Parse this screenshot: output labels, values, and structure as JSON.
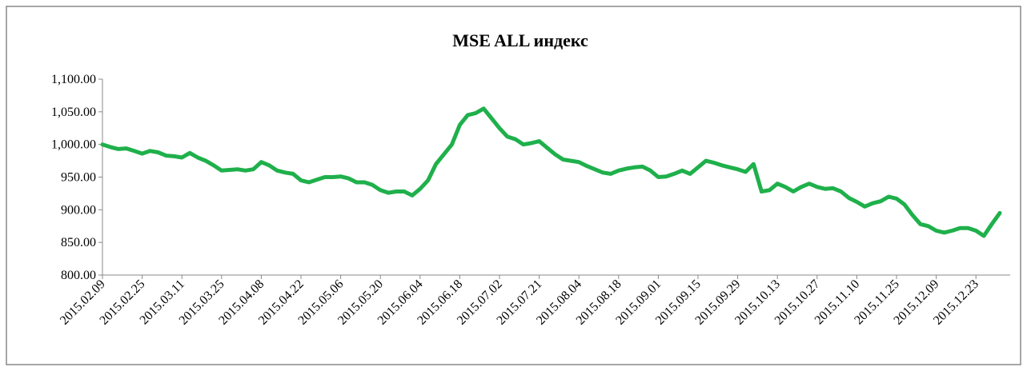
{
  "chart_data": {
    "type": "line",
    "title": "MSE ALL индекс",
    "categories": [
      "2015.02.09",
      null,
      null,
      null,
      null,
      "2015.02.25",
      null,
      null,
      null,
      null,
      "2015.03.11",
      null,
      null,
      null,
      null,
      "2015.03.25",
      null,
      null,
      null,
      null,
      "2015.04.08",
      null,
      null,
      null,
      null,
      "2015.04.22",
      null,
      null,
      null,
      null,
      "2015.05.06",
      null,
      null,
      null,
      null,
      "2015.05.20",
      null,
      null,
      null,
      null,
      "2015.06.04",
      null,
      null,
      null,
      null,
      "2015.06.18",
      null,
      null,
      null,
      null,
      "2015.07.02",
      null,
      null,
      null,
      null,
      "2015.07.21",
      null,
      null,
      null,
      null,
      "2015.08.04",
      null,
      null,
      null,
      null,
      "2015.08.18",
      null,
      null,
      null,
      null,
      "2015.09.01",
      null,
      null,
      null,
      null,
      "2015.09.15",
      null,
      null,
      null,
      null,
      "2015.09.29",
      null,
      null,
      null,
      null,
      "2015.10.13",
      null,
      null,
      null,
      null,
      "2015.10.27",
      null,
      null,
      null,
      null,
      "2015.11.10",
      null,
      null,
      null,
      null,
      "2015.11.25",
      null,
      null,
      null,
      null,
      "2015.12.09",
      null,
      null,
      null,
      null,
      "2015.12.23",
      null,
      null,
      null
    ],
    "series": [
      {
        "color": "#1fb04b",
        "values": [
          1000,
          996,
          993,
          994,
          990,
          986,
          990,
          988,
          983,
          982,
          980,
          987,
          980,
          975,
          968,
          960,
          961,
          962,
          960,
          962,
          973,
          968,
          960,
          957,
          955,
          945,
          942,
          946,
          950,
          950,
          951,
          948,
          942,
          942,
          938,
          930,
          926,
          928,
          928,
          922,
          932,
          945,
          970,
          985,
          1000,
          1030,
          1045,
          1048,
          1055,
          1040,
          1025,
          1012,
          1008,
          1000,
          1002,
          1005,
          995,
          985,
          977,
          975,
          973,
          967,
          962,
          957,
          955,
          960,
          963,
          965,
          966,
          960,
          950,
          951,
          955,
          960,
          955,
          965,
          975,
          972,
          968,
          965,
          962,
          958,
          970,
          928,
          930,
          940,
          935,
          928,
          935,
          940,
          935,
          932,
          933,
          928,
          918,
          912,
          905,
          910,
          913,
          920,
          917,
          908,
          892,
          878,
          875,
          868,
          865,
          868,
          872,
          872,
          868,
          860,
          878,
          895
        ]
      }
    ],
    "ylim": [
      800,
      1100
    ],
    "yticks": [
      {
        "value": 800,
        "label": "800.00"
      },
      {
        "value": 850,
        "label": "850.00"
      },
      {
        "value": 900,
        "label": "900.00"
      },
      {
        "value": 950,
        "label": "950.00"
      },
      {
        "value": 1000,
        "label": "1,000.00"
      },
      {
        "value": 1050,
        "label": "1,050.00"
      },
      {
        "value": 1100,
        "label": "1,100.00"
      }
    ]
  }
}
